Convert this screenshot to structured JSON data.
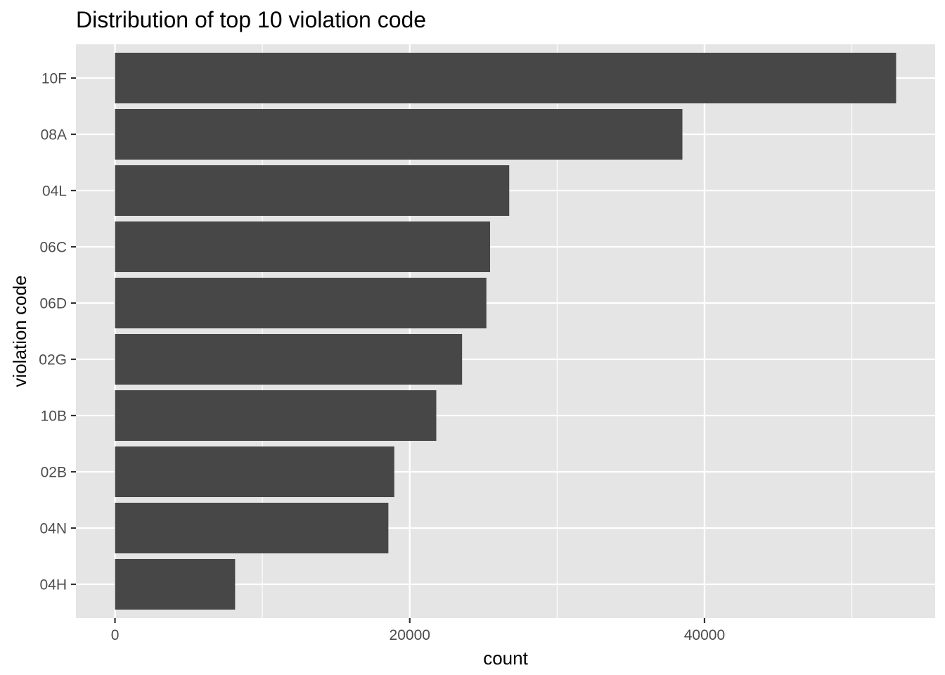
{
  "chart_data": {
    "type": "bar",
    "orientation": "horizontal",
    "title": "Distribution of top 10 violation code",
    "xlabel": "count",
    "ylabel": "violation code",
    "categories": [
      "10F",
      "08A",
      "04L",
      "06C",
      "06D",
      "02G",
      "10B",
      "02B",
      "04N",
      "04H"
    ],
    "values": [
      53000,
      38500,
      26750,
      25450,
      25200,
      23550,
      21800,
      18950,
      18550,
      8150
    ],
    "x_ticks": [
      0,
      20000,
      40000
    ],
    "x_tick_labels": [
      "0",
      "20000",
      "40000"
    ],
    "xlim": [
      -2650,
      55650
    ],
    "grid": true,
    "legend": "none",
    "colors": {
      "bar": "#474747",
      "panel": "#e5e5e5",
      "grid": "#ffffff",
      "tick": "#333333",
      "tick_text": "#4d4d4d"
    }
  }
}
